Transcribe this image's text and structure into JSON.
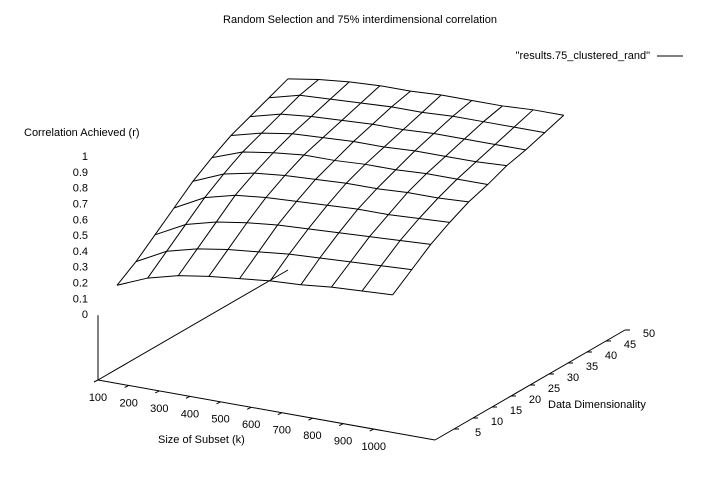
{
  "chart_data": {
    "type": "surface",
    "title": "Random Selection and 75% interdimensional correlation",
    "legend": "\"results.75_clustered_rand\"",
    "xlabel": "Size of Subset (k)",
    "ylabel": "Data Dimensionality",
    "zlabel": "Correlation Achieved (r)",
    "x": [
      100,
      200,
      300,
      400,
      500,
      600,
      700,
      800,
      900,
      1000
    ],
    "y": [
      5,
      10,
      15,
      20,
      25,
      30,
      35,
      40,
      45,
      50
    ],
    "z": [
      [
        0.12,
        0.2,
        0.25,
        0.28,
        0.3,
        0.32,
        0.33,
        0.35,
        0.36,
        0.37
      ],
      [
        0.2,
        0.3,
        0.35,
        0.38,
        0.4,
        0.42,
        0.43,
        0.44,
        0.45,
        0.46
      ],
      [
        0.3,
        0.4,
        0.45,
        0.48,
        0.5,
        0.51,
        0.52,
        0.53,
        0.54,
        0.55
      ],
      [
        0.4,
        0.5,
        0.55,
        0.57,
        0.58,
        0.59,
        0.6,
        0.6,
        0.61,
        0.62
      ],
      [
        0.5,
        0.58,
        0.62,
        0.64,
        0.65,
        0.66,
        0.66,
        0.67,
        0.67,
        0.68
      ],
      [
        0.58,
        0.65,
        0.68,
        0.7,
        0.7,
        0.71,
        0.71,
        0.72,
        0.72,
        0.72
      ],
      [
        0.65,
        0.7,
        0.73,
        0.74,
        0.75,
        0.75,
        0.76,
        0.76,
        0.76,
        0.77
      ],
      [
        0.7,
        0.75,
        0.77,
        0.78,
        0.79,
        0.79,
        0.8,
        0.8,
        0.8,
        0.8
      ],
      [
        0.75,
        0.8,
        0.81,
        0.82,
        0.83,
        0.83,
        0.84,
        0.84,
        0.84,
        0.84
      ],
      [
        0.8,
        0.83,
        0.85,
        0.86,
        0.86,
        0.87,
        0.87,
        0.87,
        0.88,
        0.88
      ]
    ],
    "color": "#000000",
    "xlim": [
      100,
      1200
    ],
    "xticks": [
      100,
      200,
      300,
      400,
      500,
      600,
      700,
      800,
      900,
      1000
    ],
    "ylim": [
      0,
      50
    ],
    "yticks": [
      5,
      10,
      15,
      20,
      25,
      30,
      35,
      40,
      45,
      50
    ],
    "zlim": [
      0,
      1
    ],
    "zticks": [
      0,
      0.1,
      0.2,
      0.3,
      0.4,
      0.5,
      0.6,
      0.7,
      0.8,
      0.9,
      1
    ]
  }
}
